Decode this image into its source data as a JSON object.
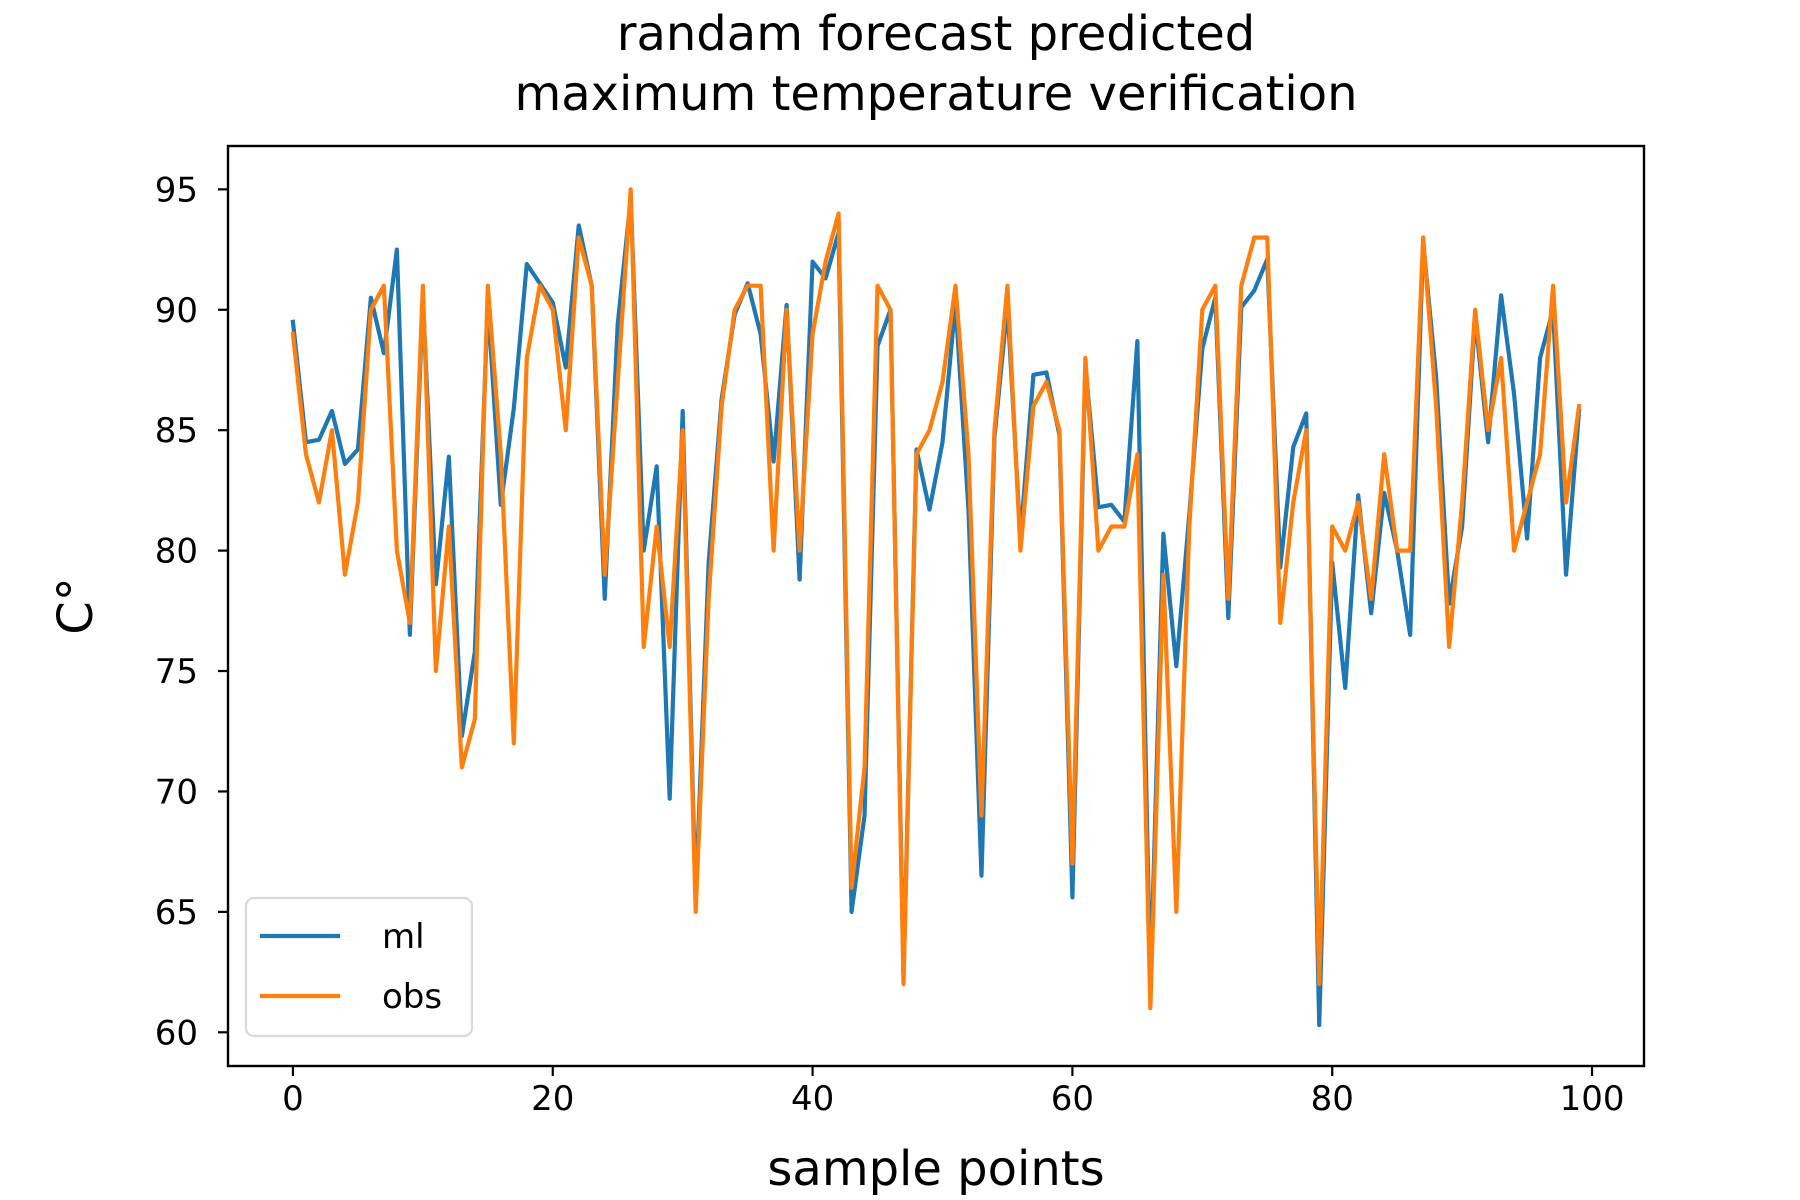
{
  "chart_data": {
    "type": "line",
    "title": "randam forecast predicted\nmaximum temperature verification",
    "title_lines": [
      "randam forecast predicted",
      "maximum temperature verification"
    ],
    "xlabel": "sample points",
    "ylabel": "C°",
    "xlim": [
      -5,
      104
    ],
    "ylim": [
      58.6,
      96.8
    ],
    "xticks": [
      0,
      20,
      40,
      60,
      80,
      100
    ],
    "yticks": [
      60,
      65,
      70,
      75,
      80,
      85,
      90,
      95
    ],
    "grid": false,
    "legend_position": "lower-left",
    "x": [
      0,
      1,
      2,
      3,
      4,
      5,
      6,
      7,
      8,
      9,
      10,
      11,
      12,
      13,
      14,
      15,
      16,
      17,
      18,
      19,
      20,
      21,
      22,
      23,
      24,
      25,
      26,
      27,
      28,
      29,
      30,
      31,
      32,
      33,
      34,
      35,
      36,
      37,
      38,
      39,
      40,
      41,
      42,
      43,
      44,
      45,
      46,
      47,
      48,
      49,
      50,
      51,
      52,
      53,
      54,
      55,
      56,
      57,
      58,
      59,
      60,
      61,
      62,
      63,
      64,
      65,
      66,
      67,
      68,
      69,
      70,
      71,
      72,
      73,
      74,
      75,
      76,
      77,
      78,
      79,
      80,
      81,
      82,
      83,
      84,
      85,
      86,
      87,
      88,
      89,
      90,
      91,
      92,
      93,
      94,
      95,
      96,
      97,
      98,
      99
    ],
    "series": [
      {
        "name": "ml",
        "color": "#1f77b4",
        "values": [
          89.5,
          84.5,
          84.6,
          85.8,
          83.6,
          84.2,
          90.5,
          88.2,
          92.5,
          76.5,
          90.5,
          78.6,
          83.9,
          72.3,
          75.8,
          90.3,
          81.9,
          85.9,
          91.9,
          91.1,
          90.3,
          87.6,
          93.5,
          91.0,
          78.0,
          89.4,
          94.6,
          80.0,
          83.5,
          69.7,
          85.8,
          65.5,
          79.5,
          86.3,
          89.8,
          91.1,
          89.0,
          83.7,
          90.2,
          78.8,
          92.0,
          91.3,
          93.2,
          65.0,
          69.0,
          88.5,
          90.0,
          62.3,
          84.2,
          81.7,
          84.5,
          90.3,
          81.7,
          66.5,
          84.7,
          90.2,
          80.5,
          87.3,
          87.4,
          84.8,
          65.6,
          87.7,
          81.8,
          81.9,
          81.2,
          88.7,
          61.8,
          80.7,
          75.2,
          81.5,
          88.4,
          90.5,
          77.2,
          90.1,
          90.8,
          92.1,
          79.3,
          84.3,
          85.7,
          60.3,
          79.5,
          74.3,
          82.3,
          77.4,
          82.4,
          80.0,
          76.5,
          92.8,
          87.2,
          77.8,
          81.0,
          89.7,
          84.5,
          90.6,
          86.5,
          80.5,
          88.0,
          90.0,
          79.0,
          85.8
        ]
      },
      {
        "name": "obs",
        "color": "#ff7f0e",
        "values": [
          89.0,
          84.0,
          82.0,
          85.0,
          79.0,
          82.0,
          90.0,
          91.0,
          80.0,
          77.0,
          91.0,
          75.0,
          81.0,
          71.0,
          73.0,
          91.0,
          84.0,
          72.0,
          88.0,
          91.0,
          90.0,
          85.0,
          93.0,
          91.0,
          79.0,
          87.0,
          95.0,
          76.0,
          81.0,
          76.0,
          85.0,
          65.0,
          78.0,
          86.0,
          90.0,
          91.0,
          91.0,
          80.0,
          90.0,
          80.0,
          89.0,
          92.0,
          94.0,
          66.0,
          71.0,
          91.0,
          90.0,
          62.0,
          84.0,
          85.0,
          87.0,
          91.0,
          84.0,
          69.0,
          85.0,
          91.0,
          80.0,
          86.0,
          87.0,
          85.0,
          67.0,
          88.0,
          80.0,
          81.0,
          81.0,
          84.0,
          61.0,
          79.0,
          65.0,
          81.0,
          90.0,
          91.0,
          78.0,
          91.0,
          93.0,
          93.0,
          77.0,
          82.0,
          85.0,
          62.0,
          81.0,
          80.0,
          82.0,
          78.0,
          84.0,
          80.0,
          80.0,
          93.0,
          86.0,
          76.0,
          82.0,
          90.0,
          85.0,
          88.0,
          80.0,
          82.0,
          84.0,
          91.0,
          82.0,
          86.0
        ]
      }
    ]
  }
}
